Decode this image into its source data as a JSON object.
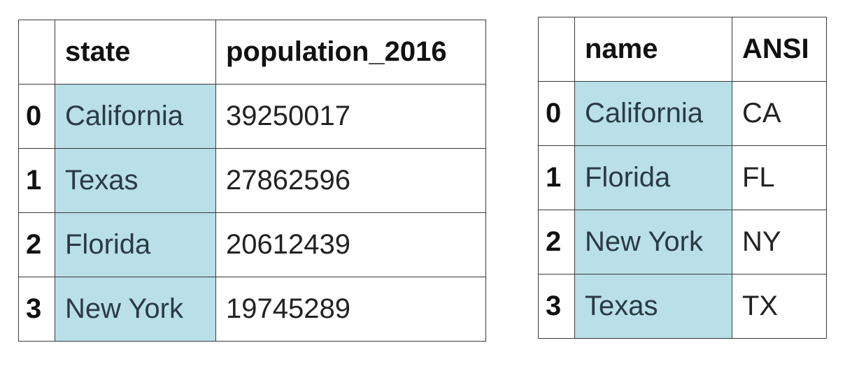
{
  "left_table": {
    "columns": [
      "",
      "state",
      "population_2016"
    ],
    "rows": [
      {
        "index": "0",
        "state": "California",
        "population_2016": "39250017"
      },
      {
        "index": "1",
        "state": "Texas",
        "population_2016": "27862596"
      },
      {
        "index": "2",
        "state": "Florida",
        "population_2016": "20612439"
      },
      {
        "index": "3",
        "state": "New York",
        "population_2016": "19745289"
      }
    ]
  },
  "right_table": {
    "columns": [
      "",
      "name",
      "ANSI"
    ],
    "rows": [
      {
        "index": "0",
        "name": "California",
        "ANSI": "CA"
      },
      {
        "index": "1",
        "name": "Florida",
        "ANSI": "FL"
      },
      {
        "index": "2",
        "name": "New York",
        "ANSI": "NY"
      },
      {
        "index": "3",
        "name": "Texas",
        "ANSI": "TX"
      }
    ]
  },
  "colors": {
    "highlight": "#b9dfe9",
    "border": "#3a3a3a"
  }
}
